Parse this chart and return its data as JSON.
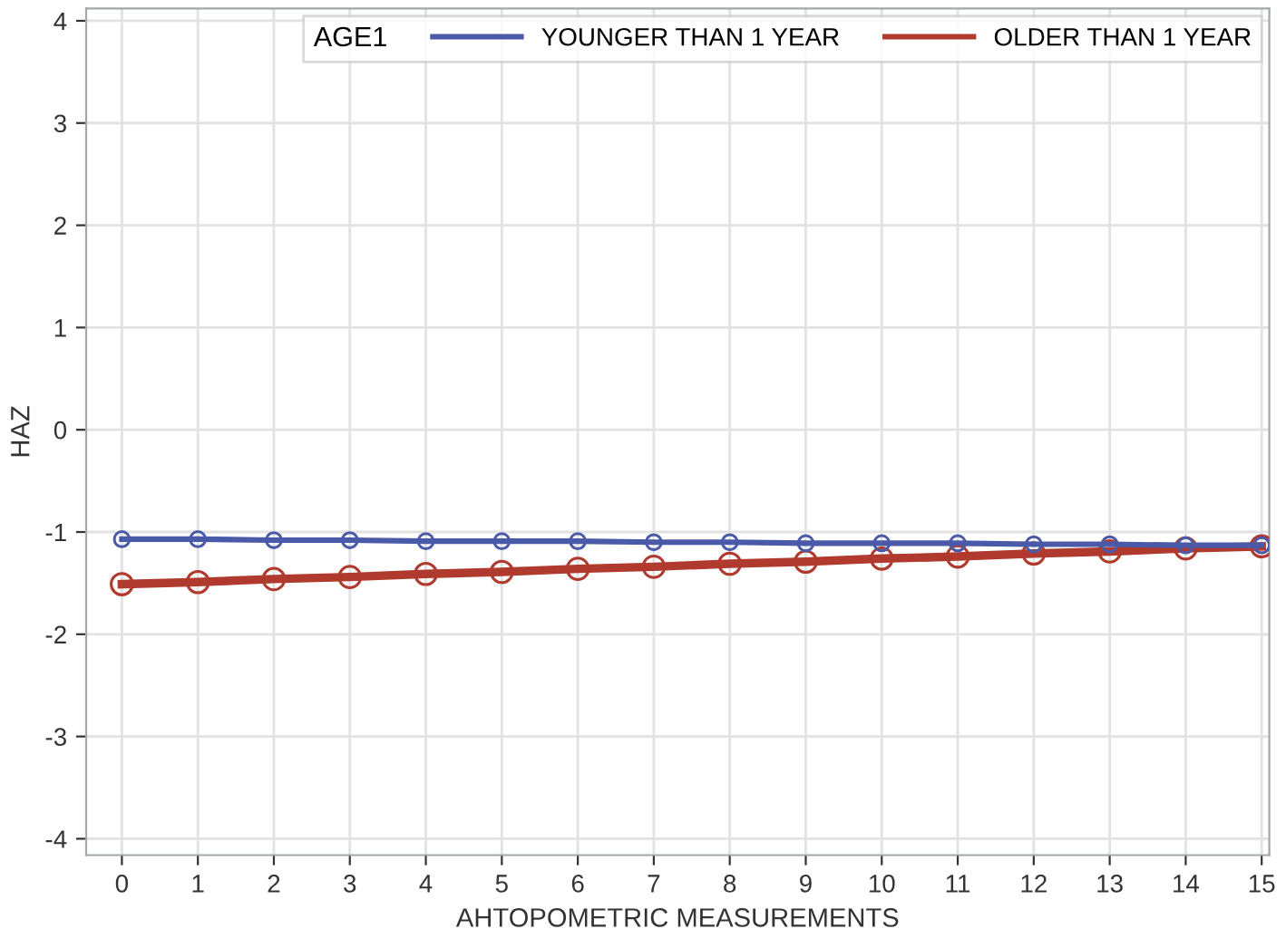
{
  "chart_data": {
    "type": "line",
    "xlabel": "AHTOPOMETRIC MEASUREMENTS",
    "ylabel": "HAZ",
    "legend_title": "AGE1",
    "x": [
      0,
      1,
      2,
      3,
      4,
      5,
      6,
      7,
      8,
      9,
      10,
      11,
      12,
      13,
      14,
      15
    ],
    "series": [
      {
        "name": "YOUNGER THAN 1 YEAR",
        "color": "#4a5aa8",
        "values": [
          -1.07,
          -1.07,
          -1.08,
          -1.08,
          -1.09,
          -1.09,
          -1.09,
          -1.1,
          -1.1,
          -1.11,
          -1.11,
          -1.11,
          -1.12,
          -1.12,
          -1.13,
          -1.13
        ]
      },
      {
        "name": "OLDER THAN 1 YEAR",
        "color": "#b03a2e",
        "values": [
          -1.51,
          -1.49,
          -1.46,
          -1.44,
          -1.41,
          -1.39,
          -1.36,
          -1.34,
          -1.31,
          -1.29,
          -1.26,
          -1.24,
          -1.21,
          -1.19,
          -1.16,
          -1.14
        ]
      }
    ],
    "xlim": [
      -0.47,
      15.1
    ],
    "ylim": [
      -4.16,
      4.12
    ],
    "xticks": [
      0,
      1,
      2,
      3,
      4,
      5,
      6,
      7,
      8,
      9,
      10,
      11,
      12,
      13,
      14,
      15
    ],
    "yticks": [
      -4,
      -3,
      -2,
      -1,
      0,
      1,
      2,
      3,
      4
    ],
    "grid": true,
    "legend": "top right",
    "marker": "circle",
    "line_style": "solid"
  }
}
